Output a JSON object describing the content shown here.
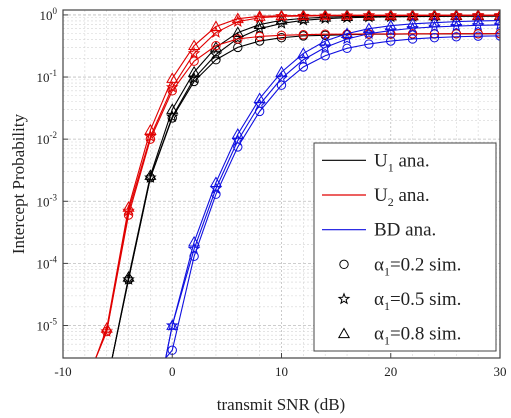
{
  "chart_data": {
    "type": "line",
    "title": "",
    "xlabel": "transmit SNR (dB)",
    "ylabel": "Intercept Probability",
    "xlim": [
      -10,
      30
    ],
    "ylim": [
      3e-06,
      1.2
    ],
    "yscale": "log",
    "grid": true,
    "x_ticks": [
      -10,
      0,
      10,
      20,
      30
    ],
    "x_tick_labels": [
      "-10",
      "0",
      "10",
      "20",
      "30"
    ],
    "y_ticks": [
      1e-05,
      0.0001,
      0.001,
      0.01,
      0.1,
      1
    ],
    "y_tick_labels": [
      {
        "base": "10",
        "exp": "-5"
      },
      {
        "base": "10",
        "exp": "-4"
      },
      {
        "base": "10",
        "exp": "-3"
      },
      {
        "base": "10",
        "exp": "-2"
      },
      {
        "base": "10",
        "exp": "-1"
      },
      {
        "base": "10",
        "exp": "0"
      }
    ],
    "legend_position": "bottom-right",
    "colors": {
      "U1": "#000000",
      "U2": "#e00000",
      "BD": "#1010e0"
    },
    "legend": [
      {
        "text": "U",
        "sub": "1",
        "rest": " ana.",
        "marker": "line",
        "color": "#000000"
      },
      {
        "text": "U",
        "sub": "2",
        "rest": " ana.",
        "marker": "line",
        "color": "#e00000"
      },
      {
        "text": "BD ana.",
        "sub": "",
        "rest": "",
        "marker": "line",
        "color": "#1010e0"
      },
      {
        "text": "α",
        "sub": "1",
        "rest": "=0.2 sim.",
        "marker": "circle",
        "color": "#000000"
      },
      {
        "text": "α",
        "sub": "1",
        "rest": "=0.5 sim.",
        "marker": "star",
        "color": "#000000"
      },
      {
        "text": "α",
        "sub": "1",
        "rest": "=0.8 sim.",
        "marker": "triangle",
        "color": "#000000"
      }
    ],
    "series": [
      {
        "group": "U1",
        "alpha": "0.2",
        "marker": "circle",
        "color": "#000000",
        "x": [
          -5.5,
          -4,
          -2,
          0,
          2,
          4,
          6,
          8,
          10,
          12,
          14,
          16,
          18,
          20,
          22,
          24,
          26,
          28,
          30
        ],
        "y": [
          3e-06,
          5.5e-05,
          0.0024,
          0.022,
          0.085,
          0.19,
          0.3,
          0.38,
          0.43,
          0.46,
          0.47,
          0.48,
          0.49,
          0.49,
          0.495,
          0.495,
          0.497,
          0.497,
          0.498
        ]
      },
      {
        "group": "U1",
        "alpha": "0.5",
        "marker": "star",
        "color": "#000000",
        "x": [
          -5.5,
          -4,
          -2,
          0,
          2,
          4,
          6,
          8,
          10,
          12,
          14,
          16,
          18,
          20,
          22,
          24,
          26,
          28,
          30
        ],
        "y": [
          3e-06,
          5.5e-05,
          0.0024,
          0.023,
          0.095,
          0.23,
          0.42,
          0.6,
          0.73,
          0.82,
          0.87,
          0.9,
          0.92,
          0.93,
          0.94,
          0.945,
          0.95,
          0.95,
          0.955
        ]
      },
      {
        "group": "U1",
        "alpha": "0.8",
        "marker": "triangle",
        "color": "#000000",
        "x": [
          -5.5,
          -4,
          -2,
          0,
          2,
          4,
          6,
          8,
          10,
          12,
          14,
          16,
          18,
          20,
          22,
          24,
          26,
          28,
          30
        ],
        "y": [
          3e-06,
          6e-05,
          0.0026,
          0.03,
          0.12,
          0.3,
          0.52,
          0.7,
          0.82,
          0.88,
          0.92,
          0.94,
          0.95,
          0.96,
          0.96,
          0.965,
          0.97,
          0.97,
          0.97
        ]
      },
      {
        "group": "U2",
        "alpha": "0.2",
        "marker": "circle",
        "color": "#e00000",
        "x": [
          -7,
          -6,
          -4,
          -2,
          0,
          2,
          4,
          6,
          8,
          10,
          12,
          14,
          16,
          18,
          20,
          22,
          24,
          26,
          28,
          30
        ],
        "y": [
          3e-06,
          8e-06,
          0.0006,
          0.01,
          0.06,
          0.18,
          0.32,
          0.41,
          0.45,
          0.47,
          0.48,
          0.49,
          0.49,
          0.495,
          0.495,
          0.497,
          0.497,
          0.498,
          0.498,
          0.499
        ]
      },
      {
        "group": "U2",
        "alpha": "0.5",
        "marker": "star",
        "color": "#e00000",
        "x": [
          -7,
          -6,
          -4,
          -2,
          0,
          2,
          4,
          6,
          8,
          10,
          12,
          14,
          16,
          18,
          20,
          22,
          24,
          26,
          28,
          30
        ],
        "y": [
          3e-06,
          8e-06,
          0.0007,
          0.011,
          0.068,
          0.24,
          0.52,
          0.78,
          0.9,
          0.95,
          0.96,
          0.97,
          0.975,
          0.98,
          0.98,
          0.98,
          0.985,
          0.985,
          0.985,
          0.985
        ]
      },
      {
        "group": "U2",
        "alpha": "0.8",
        "marker": "triangle",
        "color": "#e00000",
        "x": [
          -7,
          -6,
          -4,
          -2,
          0,
          2,
          4,
          6,
          8,
          10,
          12,
          14,
          16,
          18,
          20,
          22,
          24,
          26,
          28,
          30
        ],
        "y": [
          3e-06,
          9e-06,
          0.0008,
          0.014,
          0.095,
          0.32,
          0.65,
          0.87,
          0.95,
          0.97,
          0.98,
          0.985,
          0.99,
          0.99,
          0.99,
          0.99,
          0.99,
          0.99,
          0.99,
          0.99
        ]
      },
      {
        "group": "BD",
        "alpha": "0.2",
        "marker": "circle",
        "color": "#1010e0",
        "x": [
          -0.6,
          0,
          2,
          4,
          6,
          8,
          10,
          12,
          14,
          16,
          18,
          20,
          22,
          24,
          26,
          28,
          30
        ],
        "y": [
          3e-06,
          4e-06,
          0.00013,
          0.0013,
          0.0075,
          0.028,
          0.074,
          0.145,
          0.22,
          0.29,
          0.34,
          0.38,
          0.41,
          0.43,
          0.445,
          0.455,
          0.46
        ]
      },
      {
        "group": "BD",
        "alpha": "0.5",
        "marker": "star",
        "color": "#1010e0",
        "x": [
          -0.6,
          0,
          2,
          4,
          6,
          8,
          10,
          12,
          14,
          16,
          18,
          20,
          22,
          24,
          26,
          28,
          30
        ],
        "y": [
          3e-06,
          1e-05,
          0.00017,
          0.0016,
          0.0095,
          0.036,
          0.095,
          0.19,
          0.3,
          0.41,
          0.5,
          0.56,
          0.61,
          0.64,
          0.66,
          0.68,
          0.69
        ]
      },
      {
        "group": "BD",
        "alpha": "0.8",
        "marker": "triangle",
        "color": "#1010e0",
        "x": [
          -0.6,
          0,
          2,
          4,
          6,
          8,
          10,
          12,
          14,
          16,
          18,
          20,
          22,
          24,
          26,
          28,
          30
        ],
        "y": [
          3e-06,
          1e-05,
          0.00022,
          0.002,
          0.012,
          0.045,
          0.12,
          0.24,
          0.38,
          0.5,
          0.6,
          0.67,
          0.72,
          0.75,
          0.78,
          0.8,
          0.81
        ]
      }
    ]
  }
}
